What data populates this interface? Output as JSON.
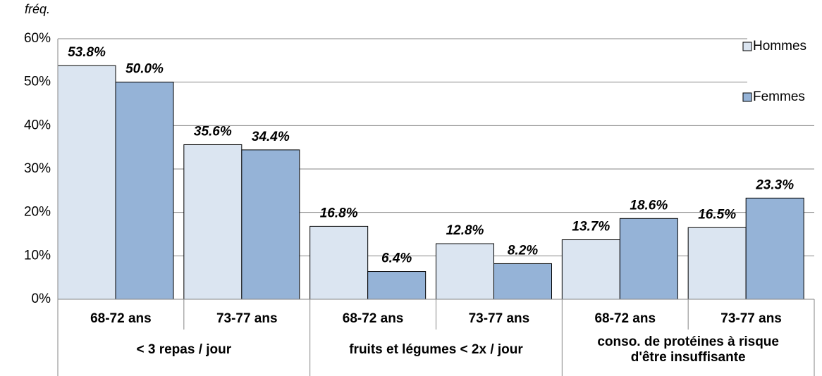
{
  "chart_data": {
    "type": "bar",
    "y_label": "fréq.",
    "categories": [
      "68-72 ans",
      "73-77 ans",
      "68-72 ans",
      "73-77 ans",
      "68-72 ans",
      "73-77 ans"
    ],
    "group_labels": [
      [
        "< 3 repas / jour"
      ],
      [
        "fruits et légumes < 2x / jour"
      ],
      [
        "conso. de protéines à risque",
        "d'être insuffisante"
      ]
    ],
    "series": [
      {
        "name": "Hommes",
        "color": "#dbe5f1",
        "values": [
          53.8,
          35.6,
          16.8,
          12.8,
          13.7,
          16.5
        ],
        "value_labels": [
          "53.8%",
          "35.6%",
          "16.8%",
          "12.8%",
          "13.7%",
          "16.5%"
        ]
      },
      {
        "name": "Femmes",
        "color": "#95b3d7",
        "values": [
          50.0,
          34.4,
          6.4,
          8.2,
          18.6,
          23.3
        ],
        "value_labels": [
          "50.0%",
          "34.4%",
          "6.4%",
          "8.2%",
          "18.6%",
          "23.3%"
        ]
      }
    ],
    "ylim": [
      0,
      60
    ],
    "yticks": [
      {
        "value": 0,
        "label": "0%"
      },
      {
        "value": 10,
        "label": "10%"
      },
      {
        "value": 20,
        "label": "20%"
      },
      {
        "value": 30,
        "label": "30%"
      },
      {
        "value": 40,
        "label": "40%"
      },
      {
        "value": 50,
        "label": "50%"
      },
      {
        "value": 60,
        "label": "60%"
      }
    ],
    "grid": true,
    "legend": "top-right"
  }
}
